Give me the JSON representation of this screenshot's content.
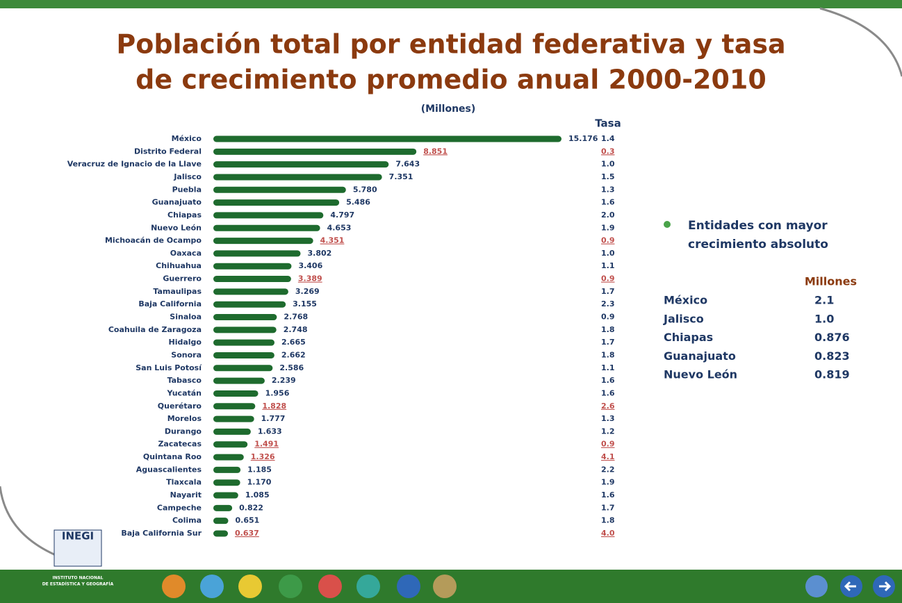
{
  "chart_data": {
    "type": "hbar",
    "title_lines": [
      "Población total por entidad federativa y tasa",
      "de crecimiento promedio anual 2000-2010"
    ],
    "subtitle": "(Millones)",
    "categories": [
      "México",
      "Distrito Federal",
      "Veracruz de Ignacio de la Llave",
      "Jalisco",
      "Puebla",
      "Guanajuato",
      "Chiapas",
      "Nuevo León",
      "Michoacán de Ocampo",
      "Oaxaca",
      "Chihuahua",
      "Guerrero",
      "Tamaulipas",
      "Baja California",
      "Sinaloa",
      "Coahuila de Zaragoza",
      "Hidalgo",
      "Sonora",
      "San Luis Potosí",
      "Tabasco",
      "Yucatán",
      "Querétaro",
      "Morelos",
      "Durango",
      "Zacatecas",
      "Quintana Roo",
      "Aguascalientes",
      "Tlaxcala",
      "Nayarit",
      "Campeche",
      "Colima",
      "Baja California Sur"
    ],
    "values": [
      15.176,
      8.851,
      7.643,
      7.351,
      5.78,
      5.486,
      4.797,
      4.653,
      4.351,
      3.802,
      3.406,
      3.389,
      3.269,
      3.155,
      2.768,
      2.748,
      2.665,
      2.662,
      2.586,
      2.239,
      1.956,
      1.828,
      1.777,
      1.633,
      1.491,
      1.326,
      1.185,
      1.17,
      1.085,
      0.822,
      0.651,
      0.637
    ],
    "value_labels": [
      "15.176",
      "8.851",
      "7.643",
      "7.351",
      "5.780",
      "5.486",
      "4.797",
      "4.653",
      "4.351",
      "3.802",
      "3.406",
      "3.389",
      "3.269",
      "3.155",
      "2.768",
      "2.748",
      "2.665",
      "2.662",
      "2.586",
      "2.239",
      "1.956",
      "1.828",
      "1.777",
      "1.633",
      "1.491",
      "1.326",
      "1.185",
      "1.170",
      "1.085",
      "0.822",
      "0.651",
      "0.637"
    ],
    "value_label_colors": [
      "#1f3864",
      "#c0504d",
      "#1f3864",
      "#1f3864",
      "#1f3864",
      "#1f3864",
      "#1f3864",
      "#1f3864",
      "#c0504d",
      "#1f3864",
      "#1f3864",
      "#c0504d",
      "#1f3864",
      "#1f3864",
      "#1f3864",
      "#1f3864",
      "#1f3864",
      "#1f3864",
      "#1f3864",
      "#1f3864",
      "#1f3864",
      "#c0504d",
      "#1f3864",
      "#1f3864",
      "#c0504d",
      "#c0504d",
      "#1f3864",
      "#1f3864",
      "#1f3864",
      "#1f3864",
      "#1f3864",
      "#c0504d"
    ],
    "color": "#1e6b2e",
    "rate_header": "Tasa",
    "rates": [
      "1.4",
      "0.3",
      "1.0",
      "1.5",
      "1.3",
      "1.6",
      "2.0",
      "1.9",
      "0.9",
      "1.0",
      "1.1",
      "0.9",
      "1.7",
      "2.3",
      "0.9",
      "1.8",
      "1.7",
      "1.8",
      "1.1",
      "1.6",
      "1.6",
      "2.6",
      "1.3",
      "1.2",
      "0.9",
      "4.1",
      "2.2",
      "1.9",
      "1.6",
      "1.7",
      "1.8",
      "4.0"
    ],
    "rate_colors": [
      "#1f3864",
      "#c0504d",
      "#1f3864",
      "#1f3864",
      "#1f3864",
      "#1f3864",
      "#1f3864",
      "#1f3864",
      "#c0504d",
      "#1f3864",
      "#1f3864",
      "#c0504d",
      "#1f3864",
      "#1f3864",
      "#1f3864",
      "#1f3864",
      "#1f3864",
      "#1f3864",
      "#1f3864",
      "#1f3864",
      "#1f3864",
      "#c0504d",
      "#1f3864",
      "#1f3864",
      "#c0504d",
      "#c0504d",
      "#1f3864",
      "#1f3864",
      "#1f3864",
      "#1f3864",
      "#1f3864",
      "#c0504d"
    ]
  },
  "panel": {
    "heading_lines": [
      "Entidades con mayor",
      "crecimiento absoluto"
    ],
    "unit": "Millones",
    "rows": [
      [
        "México",
        "2.1"
      ],
      [
        "Jalisco",
        "1.0"
      ],
      [
        "Chiapas",
        "0.876"
      ],
      [
        "Guanajuato",
        "0.823"
      ],
      [
        "Nuevo León",
        "0.819"
      ]
    ]
  },
  "logo": {
    "name": "INEGI",
    "lines": [
      "INSTITUTO NACIONAL",
      "DE ESTADÍSTICA Y GEOGRAFÍA"
    ]
  }
}
